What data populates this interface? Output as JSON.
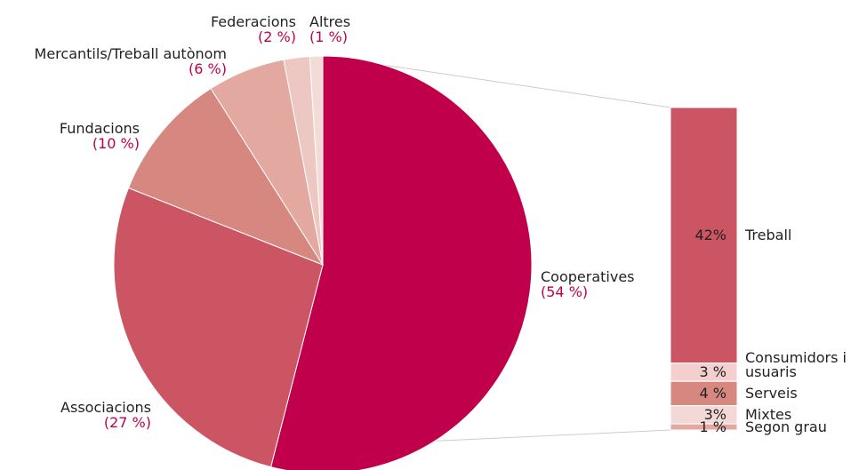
{
  "chart_data": {
    "type": "pie-of-bar",
    "pie": {
      "categories": [
        "Cooperatives",
        "Associacions",
        "Fundacions",
        "Mercantils/Treball autònom",
        "Federacions",
        "Altres"
      ],
      "values": [
        54,
        27,
        10,
        6,
        2,
        1
      ],
      "value_labels": [
        "(54 %)",
        "(27 %)",
        "(10 %)",
        "(6 %)",
        "(2 %)",
        "(1 %)"
      ],
      "colors": [
        "#c0004b",
        "#cb5563",
        "#d68880",
        "#e3a8a0",
        "#edc8c3",
        "#f3dcd8"
      ]
    },
    "bar": {
      "categories": [
        "Treball",
        "Consumidors i usuaris",
        "Serveis",
        "Mixtes",
        "Segon grau"
      ],
      "values": [
        42,
        3,
        4,
        3,
        1
      ],
      "value_labels": [
        "42%",
        "3 %",
        "4 %",
        "3%",
        "1 %"
      ],
      "colors": [
        "#cb5563",
        "#f3d0cd",
        "#d68880",
        "#f3d9d6",
        "#e3a8a0"
      ]
    }
  }
}
